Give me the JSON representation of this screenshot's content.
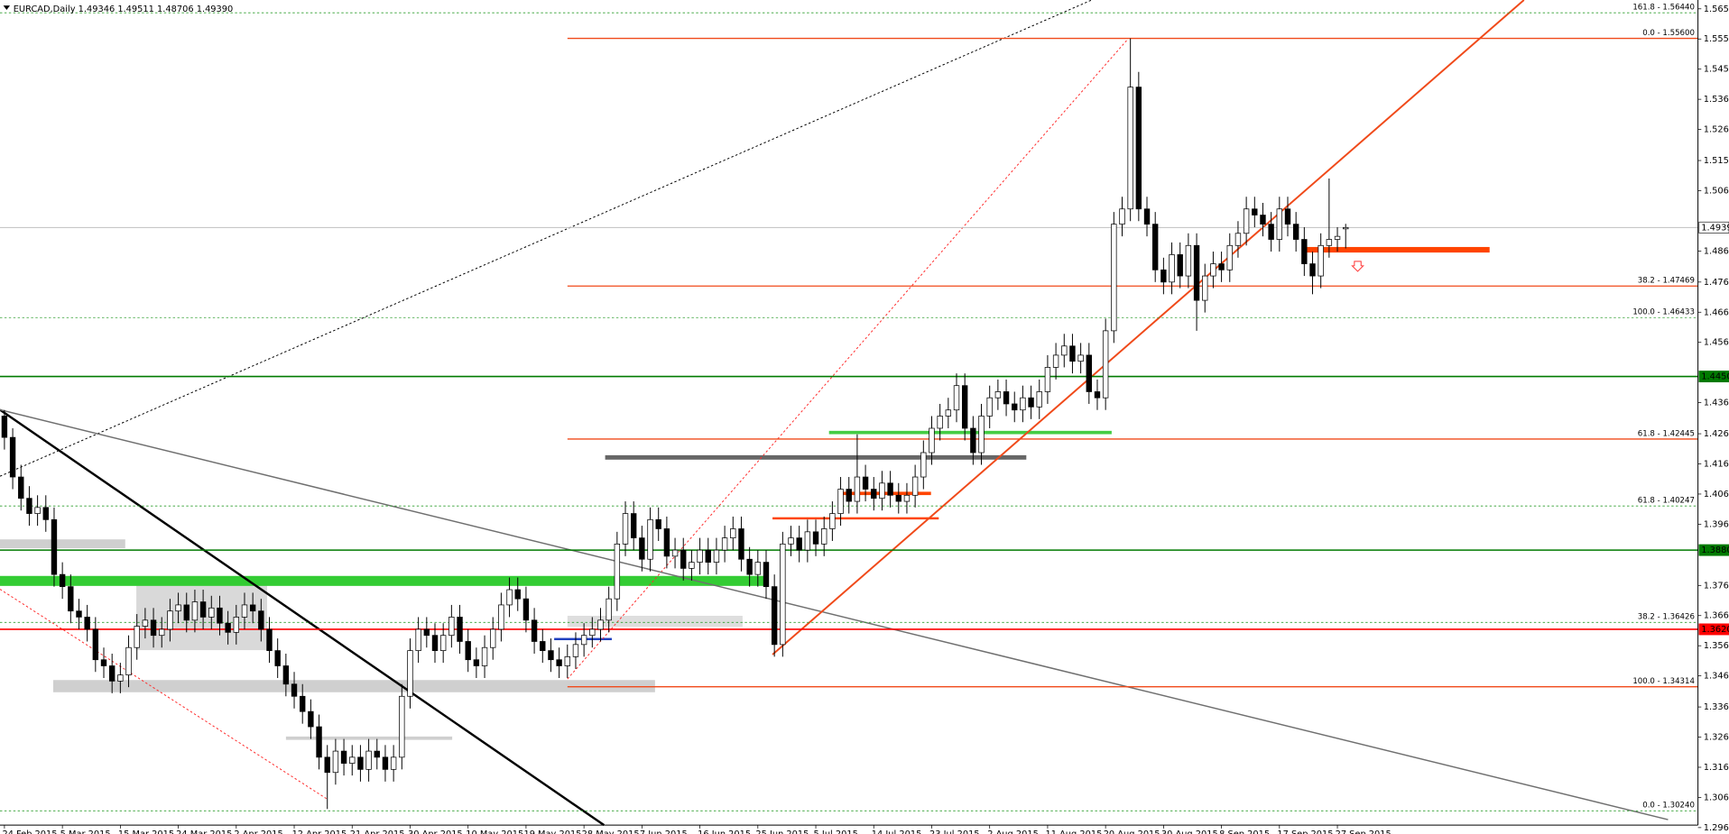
{
  "chart_data": {
    "type": "candlestick",
    "title": "EURCAD,Daily  1.49346 1.49511 1.48706 1.49390",
    "ylim": [
      1.2977,
      1.5686
    ],
    "yticks": [
      {
        "value": 1.5657,
        "label": "1.56570"
      },
      {
        "value": 1.5558,
        "label": "1.55580"
      },
      {
        "value": 1.5459,
        "label": "1.54590"
      },
      {
        "value": 1.536,
        "label": "1.53600"
      },
      {
        "value": 1.5261,
        "label": "1.52610"
      },
      {
        "value": 1.5159,
        "label": "1.51590"
      },
      {
        "value": 1.506,
        "label": "1.50600"
      },
      {
        "value": 1.4862,
        "label": "1.48620"
      },
      {
        "value": 1.476,
        "label": "1.47600"
      },
      {
        "value": 1.4661,
        "label": "1.46610"
      },
      {
        "value": 1.4562,
        "label": "1.45620"
      },
      {
        "value": 1.4364,
        "label": "1.43640"
      },
      {
        "value": 1.4262,
        "label": "1.42620"
      },
      {
        "value": 1.4163,
        "label": "1.41630"
      },
      {
        "value": 1.4064,
        "label": "1.40640"
      },
      {
        "value": 1.3965,
        "label": "1.39650"
      },
      {
        "value": 1.3764,
        "label": "1.37640"
      },
      {
        "value": 1.3665,
        "label": "1.36650"
      },
      {
        "value": 1.3566,
        "label": "1.35660"
      },
      {
        "value": 1.3467,
        "label": "1.34670"
      },
      {
        "value": 1.3365,
        "label": "1.33650"
      },
      {
        "value": 1.3266,
        "label": "1.32660"
      },
      {
        "value": 1.3167,
        "label": "1.31670"
      },
      {
        "value": 1.3068,
        "label": "1.30680"
      },
      {
        "value": 1.2969,
        "label": "1.29690"
      }
    ],
    "price_lines": [
      {
        "value": 1.4939,
        "label": "1.49390",
        "color": "#c0c0c0"
      },
      {
        "value": 1.445,
        "label": "1.44500",
        "color": "#007a00"
      },
      {
        "value": 1.388,
        "label": "1.38800",
        "color": "#007a00"
      },
      {
        "value": 1.362,
        "label": "1.36200",
        "color": "#ff0000"
      }
    ],
    "levels": [
      {
        "label": "161.8 - 1.56440",
        "value": 1.5644,
        "color": "#2e9e2e",
        "dashed": true
      },
      {
        "label": "0.0 - 1.55600",
        "value": 1.556,
        "color": "#f04a1a",
        "dashed": false
      },
      {
        "label": "38.2 - 1.47469",
        "value": 1.47469,
        "color": "#f04a1a",
        "dashed": false
      },
      {
        "label": "100.0 - 1.46433",
        "value": 1.46433,
        "color": "#2e9e2e",
        "dashed": true
      },
      {
        "label": "61.8 - 1.42445",
        "value": 1.42445,
        "color": "#f04a1a",
        "dashed": false
      },
      {
        "label": "61.8 - 1.40247",
        "value": 1.40247,
        "color": "#2e9e2e",
        "dashed": true
      },
      {
        "label": "38.2 - 1.36426",
        "value": 1.36426,
        "color": "#2e9e2e",
        "dashed": true
      },
      {
        "label": "100.0 - 1.34314",
        "value": 1.34314,
        "color": "#f04a1a",
        "dashed": false
      },
      {
        "label": "0.0 - 1.30240",
        "value": 1.3024,
        "color": "#2e9e2e",
        "dashed": true
      }
    ],
    "categories": [
      "24 Feb 2015",
      null,
      null,
      null,
      null,
      null,
      null,
      "5 Mar 2015",
      null,
      null,
      null,
      null,
      null,
      null,
      "15 Mar 2015",
      null,
      null,
      null,
      null,
      null,
      null,
      "24 Mar 2015",
      null,
      null,
      null,
      null,
      null,
      null,
      "2 Apr 2015",
      null,
      null,
      null,
      null,
      null,
      null,
      "12 Apr 2015",
      null,
      null,
      null,
      null,
      null,
      null,
      "21 Apr 2015",
      null,
      null,
      null,
      null,
      null,
      null,
      "30 Apr 2015",
      null,
      null,
      null,
      null,
      null,
      null,
      "10 May 2015",
      null,
      null,
      null,
      null,
      null,
      null,
      "19 May 2015",
      null,
      null,
      null,
      null,
      null,
      null,
      "28 May 2015",
      null,
      null,
      null,
      null,
      null,
      null,
      "7 Jun 2015",
      null,
      null,
      null,
      null,
      null,
      null,
      "16 Jun 2015",
      null,
      null,
      null,
      null,
      null,
      null,
      "25 Jun 2015",
      null,
      null,
      null,
      null,
      null,
      null,
      "5 Jul 2015",
      null,
      null,
      null,
      null,
      null,
      null,
      "14 Jul 2015",
      null,
      null,
      null,
      null,
      null,
      null,
      "23 Jul 2015",
      null,
      null,
      null,
      null,
      null,
      null,
      "2 Aug 2015",
      null,
      null,
      null,
      null,
      null,
      null,
      "11 Aug 2015",
      null,
      null,
      null,
      null,
      null,
      null,
      "20 Aug 2015",
      null,
      null,
      null,
      null,
      null,
      null,
      "30 Aug 2015",
      null,
      null,
      null,
      null,
      null,
      null,
      "8 Sep 2015",
      null,
      null,
      null,
      null,
      null,
      null,
      "17 Sep 2015",
      null,
      null,
      null,
      null,
      null,
      null,
      "27 Sep 2015",
      null
    ],
    "ohlc": [
      [
        1.432,
        1.434,
        1.421,
        1.425
      ],
      [
        1.425,
        1.428,
        1.408,
        1.412
      ],
      [
        1.412,
        1.416,
        1.401,
        1.405
      ],
      [
        1.405,
        1.409,
        1.396,
        1.4
      ],
      [
        1.4,
        1.406,
        1.396,
        1.402
      ],
      [
        1.402,
        1.406,
        1.394,
        1.398
      ],
      [
        1.398,
        1.402,
        1.376,
        1.38
      ],
      [
        1.38,
        1.384,
        1.372,
        1.376
      ],
      [
        1.376,
        1.38,
        1.364,
        1.368
      ],
      [
        1.368,
        1.372,
        1.362,
        1.366
      ],
      [
        1.366,
        1.37,
        1.358,
        1.362
      ],
      [
        1.362,
        1.366,
        1.348,
        1.352
      ],
      [
        1.352,
        1.356,
        1.346,
        1.35
      ],
      [
        1.35,
        1.354,
        1.341,
        1.345
      ],
      [
        1.345,
        1.351,
        1.341,
        1.347
      ],
      [
        1.347,
        1.36,
        1.343,
        1.356
      ],
      [
        1.356,
        1.367,
        1.352,
        1.363
      ],
      [
        1.363,
        1.369,
        1.359,
        1.365
      ],
      [
        1.365,
        1.369,
        1.356,
        1.36
      ],
      [
        1.36,
        1.366,
        1.356,
        1.362
      ],
      [
        1.362,
        1.372,
        1.358,
        1.368
      ],
      [
        1.368,
        1.374,
        1.364,
        1.37
      ],
      [
        1.37,
        1.374,
        1.361,
        1.365
      ],
      [
        1.365,
        1.375,
        1.361,
        1.371
      ],
      [
        1.371,
        1.375,
        1.362,
        1.366
      ],
      [
        1.366,
        1.373,
        1.362,
        1.369
      ],
      [
        1.369,
        1.373,
        1.36,
        1.364
      ],
      [
        1.364,
        1.368,
        1.357,
        1.361
      ],
      [
        1.361,
        1.37,
        1.357,
        1.366
      ],
      [
        1.366,
        1.374,
        1.362,
        1.37
      ],
      [
        1.37,
        1.374,
        1.364,
        1.368
      ],
      [
        1.368,
        1.372,
        1.358,
        1.362
      ],
      [
        1.362,
        1.366,
        1.351,
        1.355
      ],
      [
        1.355,
        1.359,
        1.346,
        1.35
      ],
      [
        1.35,
        1.354,
        1.34,
        1.344
      ],
      [
        1.344,
        1.348,
        1.336,
        1.34
      ],
      [
        1.34,
        1.344,
        1.331,
        1.335
      ],
      [
        1.335,
        1.339,
        1.326,
        1.33
      ],
      [
        1.33,
        1.334,
        1.316,
        1.32
      ],
      [
        1.32,
        1.324,
        1.303,
        1.315
      ],
      [
        1.315,
        1.326,
        1.311,
        1.322
      ],
      [
        1.322,
        1.326,
        1.314,
        1.318
      ],
      [
        1.318,
        1.324,
        1.314,
        1.32
      ],
      [
        1.32,
        1.324,
        1.312,
        1.316
      ],
      [
        1.316,
        1.326,
        1.312,
        1.322
      ],
      [
        1.322,
        1.326,
        1.316,
        1.32
      ],
      [
        1.32,
        1.324,
        1.312,
        1.316
      ],
      [
        1.316,
        1.324,
        1.312,
        1.32
      ],
      [
        1.32,
        1.344,
        1.316,
        1.34
      ],
      [
        1.34,
        1.359,
        1.336,
        1.355
      ],
      [
        1.355,
        1.366,
        1.351,
        1.362
      ],
      [
        1.362,
        1.366,
        1.356,
        1.36
      ],
      [
        1.36,
        1.364,
        1.351,
        1.355
      ],
      [
        1.355,
        1.364,
        1.351,
        1.36
      ],
      [
        1.36,
        1.37,
        1.356,
        1.366
      ],
      [
        1.366,
        1.37,
        1.354,
        1.358
      ],
      [
        1.358,
        1.362,
        1.348,
        1.352
      ],
      [
        1.352,
        1.356,
        1.346,
        1.35
      ],
      [
        1.35,
        1.36,
        1.346,
        1.356
      ],
      [
        1.356,
        1.366,
        1.352,
        1.362
      ],
      [
        1.362,
        1.374,
        1.358,
        1.37
      ],
      [
        1.37,
        1.379,
        1.366,
        1.375
      ],
      [
        1.375,
        1.379,
        1.368,
        1.372
      ],
      [
        1.372,
        1.376,
        1.361,
        1.365
      ],
      [
        1.365,
        1.369,
        1.354,
        1.358
      ],
      [
        1.358,
        1.362,
        1.351,
        1.355
      ],
      [
        1.355,
        1.359,
        1.348,
        1.352
      ],
      [
        1.352,
        1.356,
        1.346,
        1.35
      ],
      [
        1.35,
        1.357,
        1.346,
        1.353
      ],
      [
        1.353,
        1.361,
        1.349,
        1.357
      ],
      [
        1.357,
        1.364,
        1.353,
        1.36
      ],
      [
        1.36,
        1.366,
        1.356,
        1.362
      ],
      [
        1.362,
        1.369,
        1.358,
        1.365
      ],
      [
        1.365,
        1.376,
        1.361,
        1.372
      ],
      [
        1.372,
        1.394,
        1.368,
        1.39
      ],
      [
        1.39,
        1.404,
        1.386,
        1.4
      ],
      [
        1.4,
        1.404,
        1.388,
        1.392
      ],
      [
        1.392,
        1.396,
        1.381,
        1.385
      ],
      [
        1.385,
        1.402,
        1.381,
        1.398
      ],
      [
        1.398,
        1.402,
        1.391,
        1.395
      ],
      [
        1.395,
        1.399,
        1.382,
        1.386
      ],
      [
        1.386,
        1.392,
        1.382,
        1.388
      ],
      [
        1.388,
        1.392,
        1.378,
        1.382
      ],
      [
        1.382,
        1.388,
        1.378,
        1.384
      ],
      [
        1.384,
        1.392,
        1.38,
        1.388
      ],
      [
        1.388,
        1.392,
        1.38,
        1.384
      ],
      [
        1.384,
        1.392,
        1.38,
        1.388
      ],
      [
        1.388,
        1.396,
        1.384,
        1.392
      ],
      [
        1.392,
        1.399,
        1.388,
        1.395
      ],
      [
        1.395,
        1.399,
        1.381,
        1.385
      ],
      [
        1.385,
        1.389,
        1.376,
        1.38
      ],
      [
        1.38,
        1.388,
        1.376,
        1.384
      ],
      [
        1.384,
        1.388,
        1.372,
        1.376
      ],
      [
        1.376,
        1.38,
        1.353,
        1.357
      ],
      [
        1.357,
        1.394,
        1.353,
        1.39
      ],
      [
        1.39,
        1.396,
        1.386,
        1.392
      ],
      [
        1.392,
        1.396,
        1.384,
        1.388
      ],
      [
        1.388,
        1.398,
        1.384,
        1.394
      ],
      [
        1.394,
        1.398,
        1.386,
        1.39
      ],
      [
        1.39,
        1.399,
        1.386,
        1.395
      ],
      [
        1.395,
        1.404,
        1.391,
        1.4
      ],
      [
        1.4,
        1.412,
        1.396,
        1.408
      ],
      [
        1.408,
        1.412,
        1.4,
        1.404
      ],
      [
        1.404,
        1.426,
        1.4,
        1.412
      ],
      [
        1.412,
        1.416,
        1.404,
        1.408
      ],
      [
        1.408,
        1.412,
        1.401,
        1.405
      ],
      [
        1.405,
        1.414,
        1.401,
        1.41
      ],
      [
        1.41,
        1.414,
        1.402,
        1.406
      ],
      [
        1.406,
        1.41,
        1.4,
        1.404
      ],
      [
        1.404,
        1.41,
        1.4,
        1.406
      ],
      [
        1.406,
        1.416,
        1.402,
        1.412
      ],
      [
        1.412,
        1.424,
        1.408,
        1.42
      ],
      [
        1.42,
        1.432,
        1.416,
        1.428
      ],
      [
        1.428,
        1.436,
        1.424,
        1.432
      ],
      [
        1.432,
        1.438,
        1.428,
        1.434
      ],
      [
        1.434,
        1.446,
        1.43,
        1.442
      ],
      [
        1.442,
        1.446,
        1.424,
        1.428
      ],
      [
        1.428,
        1.432,
        1.416,
        1.42
      ],
      [
        1.42,
        1.436,
        1.416,
        1.432
      ],
      [
        1.432,
        1.442,
        1.428,
        1.438
      ],
      [
        1.438,
        1.444,
        1.434,
        1.44
      ],
      [
        1.44,
        1.444,
        1.432,
        1.436
      ],
      [
        1.436,
        1.44,
        1.43,
        1.434
      ],
      [
        1.434,
        1.442,
        1.43,
        1.438
      ],
      [
        1.438,
        1.442,
        1.431,
        1.435
      ],
      [
        1.435,
        1.444,
        1.431,
        1.44
      ],
      [
        1.44,
        1.452,
        1.436,
        1.448
      ],
      [
        1.448,
        1.456,
        1.444,
        1.452
      ],
      [
        1.452,
        1.459,
        1.448,
        1.455
      ],
      [
        1.455,
        1.459,
        1.446,
        1.45
      ],
      [
        1.45,
        1.456,
        1.446,
        1.452
      ],
      [
        1.452,
        1.456,
        1.436,
        1.44
      ],
      [
        1.44,
        1.444,
        1.434,
        1.438
      ],
      [
        1.438,
        1.464,
        1.434,
        1.46
      ],
      [
        1.46,
        1.499,
        1.456,
        1.495
      ],
      [
        1.495,
        1.504,
        1.491,
        1.5
      ],
      [
        1.5,
        1.556,
        1.496,
        1.54
      ],
      [
        1.54,
        1.545,
        1.496,
        1.5
      ],
      [
        1.5,
        1.504,
        1.491,
        1.495
      ],
      [
        1.495,
        1.499,
        1.476,
        1.48
      ],
      [
        1.48,
        1.484,
        1.472,
        1.476
      ],
      [
        1.476,
        1.489,
        1.472,
        1.485
      ],
      [
        1.485,
        1.489,
        1.474,
        1.478
      ],
      [
        1.478,
        1.492,
        1.474,
        1.488
      ],
      [
        1.488,
        1.492,
        1.46,
        1.47
      ],
      [
        1.47,
        1.482,
        1.466,
        1.478
      ],
      [
        1.478,
        1.486,
        1.474,
        1.482
      ],
      [
        1.482,
        1.486,
        1.476,
        1.48
      ],
      [
        1.48,
        1.492,
        1.476,
        1.488
      ],
      [
        1.488,
        1.496,
        1.484,
        1.492
      ],
      [
        1.492,
        1.504,
        1.488,
        1.5
      ],
      [
        1.5,
        1.504,
        1.494,
        1.498
      ],
      [
        1.498,
        1.502,
        1.491,
        1.495
      ],
      [
        1.495,
        1.499,
        1.486,
        1.49
      ],
      [
        1.49,
        1.504,
        1.486,
        1.5
      ],
      [
        1.5,
        1.504,
        1.491,
        1.495
      ],
      [
        1.495,
        1.499,
        1.486,
        1.49
      ],
      [
        1.49,
        1.494,
        1.478,
        1.482
      ],
      [
        1.482,
        1.486,
        1.472,
        1.478
      ],
      [
        1.478,
        1.492,
        1.474,
        1.488
      ],
      [
        1.488,
        1.51,
        1.484,
        1.49
      ],
      [
        1.49,
        1.494,
        1.486,
        1.491
      ],
      [
        1.49346,
        1.49511,
        1.48706,
        1.4939
      ]
    ]
  }
}
